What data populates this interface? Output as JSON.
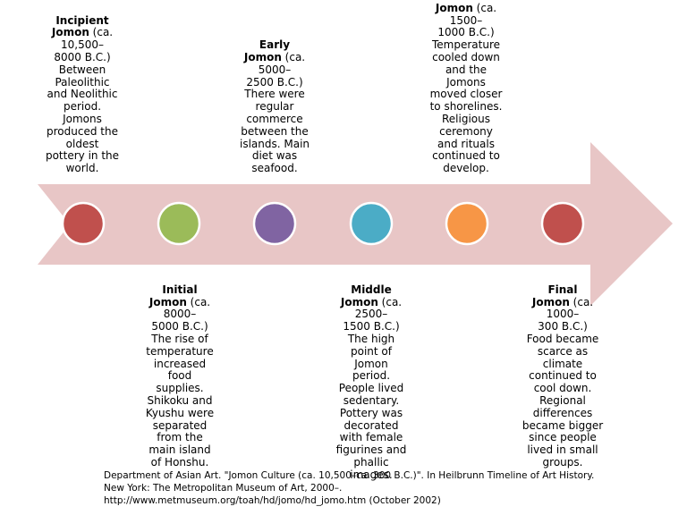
{
  "colors": {
    "arrow": "#e8c6c6"
  },
  "periods": [
    {
      "title": "Incipient\nJomon",
      "dates": " (ca.\n10,500–\n8000 B.C.)",
      "description": "Between\nPaleolithic\nand Neolithic\nperiod.\nJomons\nproduced the\noldest\npottery in the\nworld.",
      "color": "#c0504d"
    },
    {
      "title": "Initial\nJomon",
      "dates": " (ca.\n8000–\n5000 B.C.)",
      "description": "The rise of\ntemperature\nincreased\nfood\nsupplies.\nShikoku and\nKyushu were\nseparated\nfrom the\nmain island\nof Honshu.",
      "color": "#9bbb59"
    },
    {
      "title": "Early\nJomon",
      "dates": " (ca.\n5000–\n2500 B.C.)",
      "description": "There were\nregular\ncommerce\nbetween the\nislands. Main\ndiet was\nseafood.",
      "color": "#8064a2"
    },
    {
      "title": "Middle\nJomon",
      "dates": " (ca.\n2500–\n1500 B.C.)",
      "description": "The high\npoint of\nJomon\nperiod.\nPeople lived\nsedentary.\nPottery was\ndecorated\nwith female\nfigurines and\nphallic\nimages.",
      "color": "#4bacc6"
    },
    {
      "title": "Jomon",
      "dates": " (ca.\n1500–\n1000 B.C.)",
      "description": "Temperature\ncooled down\nand the\nJomons\nmoved closer\nto shorelines.\nReligious\nceremony\nand rituals\ncontinued to\ndevelop.",
      "color": "#f79646"
    },
    {
      "title": "Final\nJomon",
      "dates": " (ca.\n1000–\n300 B.C.)",
      "description": "Food became\nscarce as\nclimate\ncontinued to\ncool down.\nRegional\ndifferences\nbecame bigger\nsince people\nlived in small\ngroups.",
      "color": "#c0504d"
    }
  ],
  "citation": "Department of Asian Art. \"Jomon Culture (ca. 10,500–ca. 300 B.C.)\". In Heilbrunn Timeline of Art History.\nNew York: The Metropolitan Museum of Art, 2000–.\nhttp://www.metmuseum.org/toah/hd/jomo/hd_jomo.htm (October 2002)"
}
